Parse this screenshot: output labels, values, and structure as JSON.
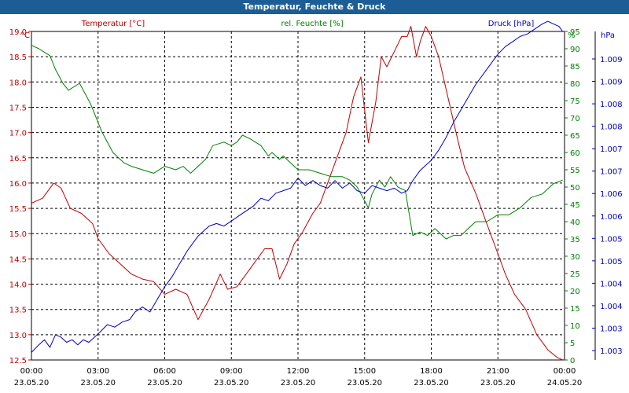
{
  "window": {
    "title": "Temperatur, Feuchte & Druck"
  },
  "chart_data": {
    "type": "line",
    "title": "Temperatur, Feuchte & Druck",
    "x": {
      "tick_labels": [
        {
          "time": "00:00",
          "date": "23.05.20"
        },
        {
          "time": "03:00",
          "date": "23.05.20"
        },
        {
          "time": "06:00",
          "date": "23.05.20"
        },
        {
          "time": "09:00",
          "date": "23.05.20"
        },
        {
          "time": "12:00",
          "date": "23.05.20"
        },
        {
          "time": "15:00",
          "date": "23.05.20"
        },
        {
          "time": "18:00",
          "date": "23.05.20"
        },
        {
          "time": "21:00",
          "date": "23.05.20"
        },
        {
          "time": "00:00",
          "date": "24.05.20"
        }
      ],
      "range": [
        "23.05.20 00:00",
        "24.05.20 00:00"
      ]
    },
    "axes": {
      "temperature": {
        "label": "Temperatur [°C]",
        "unit": "°C",
        "color": "#c00000",
        "range": [
          12.5,
          19.0
        ],
        "ticks": [
          "19.0",
          "18.5",
          "18.0",
          "17.5",
          "17.0",
          "16.5",
          "16.0",
          "15.5",
          "15.0",
          "14.5",
          "14.0",
          "13.5",
          "13.0",
          "12.5"
        ]
      },
      "humidity": {
        "label": "rel. Feuchte [%]",
        "unit": "%",
        "color": "#008000",
        "range": [
          0,
          95
        ],
        "ticks": [
          "95",
          "90",
          "85",
          "80",
          "75",
          "70",
          "65",
          "60",
          "55",
          "50",
          "45",
          "40",
          "35",
          "30",
          "25",
          "20",
          "15",
          "10",
          "5",
          "0"
        ]
      },
      "pressure": {
        "label": "Druck [hPa]",
        "unit": "hPa",
        "color": "#0000c0",
        "range": [
          1002.9,
          1009.4
        ],
        "ticks": [
          "1.009",
          "1.009",
          "1.008",
          "1.008",
          "1.007",
          "1.007",
          "1.006",
          "1.006",
          "1.005",
          "1.005",
          "1.004",
          "1.004",
          "1.003",
          "1.003"
        ]
      }
    },
    "grid": true,
    "series": [
      {
        "name": "Temperatur [°C]",
        "axis": "temperature",
        "color": "#c00000",
        "x": [
          "00:00",
          "00:30",
          "01:00",
          "01:20",
          "01:45",
          "02:15",
          "02:45",
          "03:00",
          "03:30",
          "04:00",
          "04:30",
          "05:00",
          "05:30",
          "06:00",
          "06:30",
          "07:00",
          "07:30",
          "07:45",
          "08:00",
          "08:30",
          "08:50",
          "09:15",
          "09:40",
          "10:00",
          "10:30",
          "10:50",
          "11:10",
          "11:30",
          "11:50",
          "12:10",
          "12:40",
          "13:00",
          "13:30",
          "13:50",
          "14:10",
          "14:30",
          "14:50",
          "15:10",
          "15:30",
          "15:45",
          "16:00",
          "16:20",
          "16:40",
          "16:55",
          "17:05",
          "17:20",
          "17:30",
          "17:45",
          "18:00",
          "18:20",
          "18:45",
          "19:10",
          "19:30",
          "20:00",
          "20:30",
          "21:00",
          "21:20",
          "21:45",
          "22:15",
          "22:45",
          "23:15",
          "23:40",
          "23:55"
        ],
        "y": [
          15.6,
          15.7,
          16.0,
          15.9,
          15.5,
          15.4,
          15.2,
          14.9,
          14.6,
          14.4,
          14.2,
          14.1,
          14.05,
          13.8,
          13.9,
          13.8,
          13.3,
          13.5,
          13.7,
          14.2,
          13.9,
          13.95,
          14.2,
          14.4,
          14.7,
          14.7,
          14.1,
          14.4,
          14.8,
          15.0,
          15.4,
          15.6,
          16.2,
          16.6,
          17.0,
          17.7,
          18.1,
          16.8,
          17.6,
          18.5,
          18.3,
          18.6,
          18.9,
          18.9,
          19.1,
          18.5,
          18.8,
          19.1,
          18.9,
          18.5,
          17.7,
          16.9,
          16.3,
          15.8,
          15.2,
          14.6,
          14.2,
          13.8,
          13.5,
          13.0,
          12.7,
          12.55,
          12.5
        ]
      },
      {
        "name": "rel. Feuchte [%]",
        "axis": "humidity",
        "color": "#008000",
        "x": [
          "00:00",
          "00:20",
          "00:35",
          "00:50",
          "01:05",
          "01:25",
          "01:40",
          "02:10",
          "02:40",
          "03:10",
          "03:40",
          "04:10",
          "04:30",
          "05:00",
          "05:30",
          "06:00",
          "06:30",
          "06:50",
          "07:10",
          "07:30",
          "07:50",
          "08:10",
          "08:40",
          "09:00",
          "09:15",
          "09:30",
          "09:50",
          "10:20",
          "10:40",
          "10:50",
          "11:10",
          "11:20",
          "11:40",
          "12:00",
          "12:30",
          "13:00",
          "13:30",
          "14:00",
          "14:20",
          "14:40",
          "14:55",
          "15:10",
          "15:20",
          "15:40",
          "15:55",
          "16:10",
          "16:30",
          "16:50",
          "17:10",
          "17:30",
          "17:50",
          "18:10",
          "18:40",
          "19:00",
          "19:20",
          "19:40",
          "20:00",
          "20:30",
          "21:00",
          "21:30",
          "22:00",
          "22:30",
          "23:00",
          "23:30",
          "23:55"
        ],
        "y": [
          91,
          90,
          89,
          88,
          84,
          80,
          78,
          80,
          74,
          66,
          60,
          57,
          56,
          55,
          54,
          56,
          55,
          56,
          54,
          56,
          58,
          62,
          63,
          62,
          63,
          65,
          64,
          62,
          59,
          60,
          58,
          59,
          57,
          55,
          55,
          54,
          53,
          53,
          52,
          50,
          47,
          44,
          48,
          52,
          50,
          53,
          50,
          49,
          36,
          37,
          36,
          38,
          35,
          36,
          36,
          38,
          40,
          40,
          42,
          42,
          44,
          47,
          48,
          51,
          52
        ]
      },
      {
        "name": "Druck [hPa]",
        "axis": "pressure",
        "color": "#0000c0",
        "x": [
          "00:00",
          "00:20",
          "00:35",
          "00:50",
          "01:05",
          "01:20",
          "01:35",
          "01:50",
          "02:05",
          "02:20",
          "02:35",
          "02:50",
          "03:05",
          "03:25",
          "03:45",
          "04:05",
          "04:25",
          "04:40",
          "05:00",
          "05:20",
          "05:40",
          "06:00",
          "06:20",
          "06:40",
          "07:00",
          "07:15",
          "07:30",
          "07:45",
          "08:00",
          "08:20",
          "08:40",
          "09:00",
          "09:20",
          "09:40",
          "10:00",
          "10:20",
          "10:40",
          "11:00",
          "11:20",
          "11:40",
          "12:00",
          "12:20",
          "12:40",
          "13:00",
          "13:20",
          "13:40",
          "14:00",
          "14:20",
          "14:40",
          "15:00",
          "15:20",
          "15:40",
          "16:00",
          "16:20",
          "16:40",
          "16:55",
          "17:10",
          "17:30",
          "17:45",
          "18:00",
          "18:20",
          "18:40",
          "19:00",
          "19:20",
          "19:40",
          "20:00",
          "20:20",
          "20:40",
          "21:00",
          "21:20",
          "21:40",
          "22:00",
          "22:20",
          "22:40",
          "23:00",
          "23:15",
          "23:30",
          "23:45",
          "23:55"
        ],
        "y": [
          1003.05,
          1003.2,
          1003.3,
          1003.15,
          1003.4,
          1003.35,
          1003.25,
          1003.3,
          1003.2,
          1003.3,
          1003.25,
          1003.35,
          1003.45,
          1003.6,
          1003.55,
          1003.65,
          1003.7,
          1003.85,
          1003.95,
          1003.85,
          1004.1,
          1004.35,
          1004.55,
          1004.8,
          1005.05,
          1005.2,
          1005.35,
          1005.45,
          1005.55,
          1005.6,
          1005.55,
          1005.65,
          1005.75,
          1005.85,
          1005.95,
          1006.1,
          1006.05,
          1006.2,
          1006.25,
          1006.3,
          1006.5,
          1006.35,
          1006.45,
          1006.35,
          1006.3,
          1006.45,
          1006.3,
          1006.4,
          1006.25,
          1006.2,
          1006.35,
          1006.3,
          1006.25,
          1006.3,
          1006.2,
          1006.25,
          1006.45,
          1006.65,
          1006.75,
          1006.85,
          1007.05,
          1007.3,
          1007.6,
          1007.85,
          1008.1,
          1008.35,
          1008.55,
          1008.75,
          1008.95,
          1009.1,
          1009.2,
          1009.3,
          1009.35,
          1009.45,
          1009.55,
          1009.6,
          1009.55,
          1009.5,
          1009.4
        ]
      }
    ]
  }
}
